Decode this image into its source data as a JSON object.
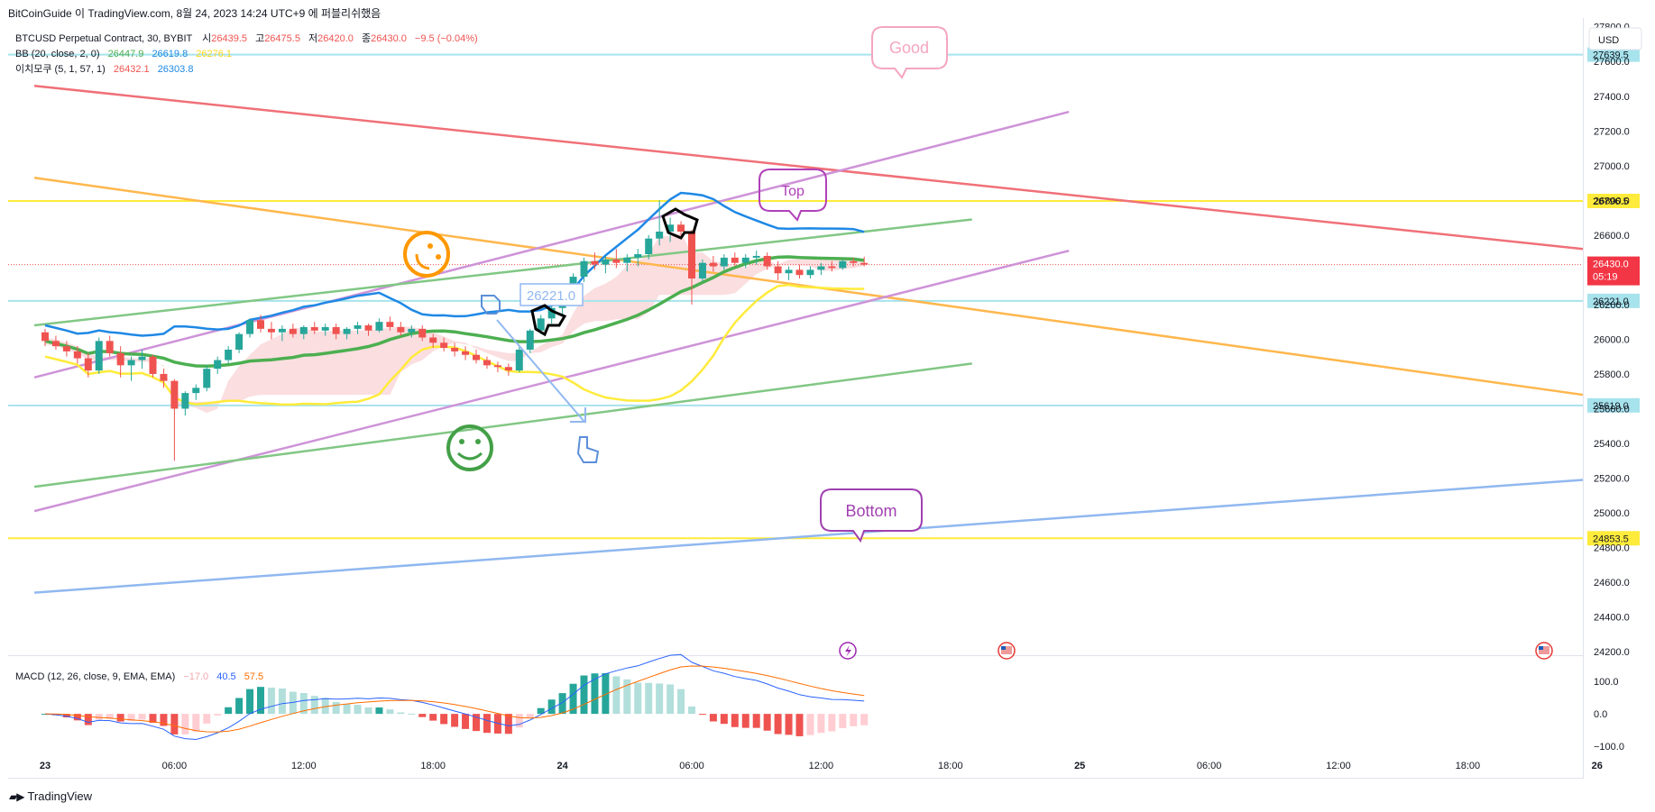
{
  "header": {
    "attribution": "BitCoinGuide 이 TradingView.com, 8월 24, 2023 14:24 UTC+9 에 퍼블리쉬했음"
  },
  "currency": "USD",
  "legend": {
    "symbol": "BTCUSD Perpetual Contract, 30, BYBIT",
    "ohlc": [
      {
        "key": "시",
        "value": "26439.5"
      },
      {
        "key": "고",
        "value": "26475.5"
      },
      {
        "key": "저",
        "value": "26420.0"
      },
      {
        "key": "종",
        "value": "26430.0"
      }
    ],
    "change": "−9.5 (−0.04%)",
    "bb": {
      "label": "BB (20, close, 2, 0)",
      "v1": "26447.9",
      "v2": "26619.8",
      "v3": "26276.1"
    },
    "ichimoku": {
      "label": "이치모쿠 (5, 1, 57, 1)",
      "v1": "26432.1",
      "v2": "26303.8"
    },
    "macd": {
      "label": "MACD (12, 26, close, 9, EMA, EMA)",
      "v1": "−17.0",
      "v2": "40.5",
      "v3": "57.5"
    }
  },
  "colors": {
    "up": "#26a69a",
    "down": "#ef5350",
    "bb_basis": "#4caf50",
    "bb_upper": "#1e88e5",
    "bb_lower": "#ffeb3b",
    "cloud": "#f8c8cc",
    "yellow_level": "#ffeb3b",
    "cyan_level": "#a7e3ec",
    "red_trend": "#f07078",
    "orange_trend": "#ffb74d",
    "purple_trend": "#ce93d8",
    "green_trend": "#81c784",
    "blue_trend": "#90b8f0",
    "macd_line": "#2962ff",
    "signal_line": "#ff6d00"
  },
  "annotations": {
    "good": "Good",
    "top": "Top",
    "bottom": "Bottom",
    "price_box": "26221.0"
  },
  "price_badge": {
    "price": "26430.0",
    "countdown": "05:19"
  },
  "footer": {
    "brand": "TradingView"
  },
  "chart_data": {
    "type": "candlestick",
    "symbol": "BTCUSD Perpetual Contract",
    "timeframe": "30",
    "y_axis": {
      "ticks": [
        "27800.0",
        "27600.0",
        "27400.0",
        "27200.0",
        "27000.0",
        "26800.0",
        "26600.0",
        "26400.0",
        "26200.0",
        "26000.0",
        "25800.0",
        "25600.0",
        "25400.0",
        "25200.0",
        "25000.0",
        "24800.0",
        "24600.0",
        "24400.0",
        "24200.0"
      ],
      "range": [
        24180,
        27840
      ]
    },
    "x_axis": {
      "ticks": [
        {
          "label": "23",
          "idx": 0
        },
        {
          "label": "06:00",
          "idx": 12
        },
        {
          "label": "12:00",
          "idx": 24
        },
        {
          "label": "18:00",
          "idx": 36
        },
        {
          "label": "24",
          "idx": 48
        },
        {
          "label": "06:00",
          "idx": 60
        },
        {
          "label": "12:00",
          "idx": 72
        },
        {
          "label": "18:00",
          "idx": 84
        },
        {
          "label": "25",
          "idx": 96
        },
        {
          "label": "06:00",
          "idx": 108
        },
        {
          "label": "12:00",
          "idx": 120
        },
        {
          "label": "18:00",
          "idx": 132
        },
        {
          "label": "26",
          "idx": 144
        }
      ],
      "bars_per_tick": 12
    },
    "price_levels": [
      {
        "label": "27639.5",
        "value": 27639.5,
        "kind": "cyan"
      },
      {
        "label": "26796.5",
        "value": 26796.5,
        "kind": "yellow"
      },
      {
        "label": "26221.0",
        "value": 26221.0,
        "kind": "cyan"
      },
      {
        "label": "25619.0",
        "value": 25619.0,
        "kind": "cyan"
      },
      {
        "label": "24853.5",
        "value": 24853.5,
        "kind": "yellow"
      }
    ],
    "trend_lines": [
      {
        "kind": "red",
        "p1": [
          -1,
          27460
        ],
        "p2": [
          148,
          26520
        ]
      },
      {
        "kind": "orange",
        "p1": [
          -1,
          26930
        ],
        "p2": [
          148,
          25680
        ]
      },
      {
        "kind": "purple",
        "p1": [
          -1,
          25780
        ],
        "p2": [
          95,
          27310
        ]
      },
      {
        "kind": "purple",
        "p1": [
          -1,
          25010
        ],
        "p2": [
          95,
          26510
        ]
      },
      {
        "kind": "green",
        "p1": [
          -1,
          26080
        ],
        "p2": [
          86,
          26690
        ]
      },
      {
        "kind": "green",
        "p1": [
          -1,
          25150
        ],
        "p2": [
          86,
          25860
        ]
      },
      {
        "kind": "blue",
        "p1": [
          -1,
          24540
        ],
        "p2": [
          148,
          25190
        ]
      }
    ],
    "candles": [
      [
        26040,
        26060,
        25960,
        25990
      ],
      [
        25990,
        26020,
        25940,
        25960
      ],
      [
        25960,
        25990,
        25900,
        25930
      ],
      [
        25930,
        25960,
        25860,
        25890
      ],
      [
        25890,
        25920,
        25780,
        25820
      ],
      [
        25820,
        26010,
        25800,
        25990
      ],
      [
        25990,
        26020,
        25900,
        25920
      ],
      [
        25920,
        25960,
        25780,
        25850
      ],
      [
        25850,
        25900,
        25760,
        25880
      ],
      [
        25880,
        25940,
        25830,
        25900
      ],
      [
        25900,
        25910,
        25780,
        25800
      ],
      [
        25800,
        25830,
        25720,
        25760
      ],
      [
        25760,
        25770,
        25300,
        25600
      ],
      [
        25600,
        25700,
        25560,
        25690
      ],
      [
        25690,
        25740,
        25650,
        25720
      ],
      [
        25720,
        25850,
        25700,
        25830
      ],
      [
        25830,
        25900,
        25800,
        25880
      ],
      [
        25880,
        25960,
        25860,
        25940
      ],
      [
        25940,
        26040,
        25920,
        26030
      ],
      [
        26030,
        26120,
        26010,
        26110
      ],
      [
        26110,
        26140,
        26040,
        26060
      ],
      [
        26060,
        26100,
        26000,
        26040
      ],
      [
        26040,
        26080,
        25990,
        26060
      ],
      [
        26060,
        26090,
        26010,
        26030
      ],
      [
        26030,
        26080,
        26000,
        26070
      ],
      [
        26070,
        26100,
        26030,
        26050
      ],
      [
        26050,
        26090,
        26020,
        26070
      ],
      [
        26070,
        26090,
        26000,
        26030
      ],
      [
        26030,
        26070,
        26000,
        26060
      ],
      [
        26060,
        26100,
        26030,
        26080
      ],
      [
        26080,
        26090,
        26020,
        26050
      ],
      [
        26050,
        26120,
        26040,
        26100
      ],
      [
        26100,
        26130,
        26050,
        26070
      ],
      [
        26070,
        26100,
        26020,
        26040
      ],
      [
        26040,
        26080,
        26010,
        26060
      ],
      [
        26060,
        26080,
        25990,
        26010
      ],
      [
        26010,
        26030,
        25950,
        25980
      ],
      [
        25980,
        26010,
        25930,
        25950
      ],
      [
        25950,
        25980,
        25900,
        25930
      ],
      [
        25930,
        25960,
        25880,
        25910
      ],
      [
        25910,
        25940,
        25860,
        25880
      ],
      [
        25880,
        25900,
        25830,
        25850
      ],
      [
        25850,
        25870,
        25810,
        25840
      ],
      [
        25840,
        25860,
        25790,
        25820
      ],
      [
        25820,
        25960,
        25810,
        25940
      ],
      [
        25940,
        26060,
        25920,
        26050
      ],
      [
        26050,
        26140,
        26030,
        26120
      ],
      [
        26120,
        26200,
        26090,
        26180
      ],
      [
        26180,
        26240,
        26140,
        26220
      ],
      [
        26220,
        26380,
        26200,
        26360
      ],
      [
        26360,
        26470,
        26330,
        26450
      ],
      [
        26450,
        26500,
        26400,
        26430
      ],
      [
        26430,
        26480,
        26380,
        26460
      ],
      [
        26460,
        26520,
        26410,
        26440
      ],
      [
        26440,
        26490,
        26390,
        26470
      ],
      [
        26470,
        26520,
        26420,
        26490
      ],
      [
        26490,
        26600,
        26460,
        26580
      ],
      [
        26580,
        26800,
        26540,
        26620
      ],
      [
        26620,
        26700,
        26560,
        26660
      ],
      [
        26660,
        26680,
        26600,
        26620
      ],
      [
        26620,
        26630,
        26200,
        26350
      ],
      [
        26350,
        26460,
        26330,
        26440
      ],
      [
        26440,
        26480,
        26390,
        26420
      ],
      [
        26420,
        26490,
        26400,
        26470
      ],
      [
        26470,
        26500,
        26420,
        26440
      ],
      [
        26440,
        26490,
        26410,
        26470
      ],
      [
        26470,
        26510,
        26430,
        26480
      ],
      [
        26480,
        26500,
        26400,
        26420
      ],
      [
        26420,
        26450,
        26340,
        26380
      ],
      [
        26380,
        26420,
        26340,
        26400
      ],
      [
        26400,
        26430,
        26350,
        26370
      ],
      [
        26370,
        26420,
        26350,
        26400
      ],
      [
        26400,
        26440,
        26370,
        26420
      ],
      [
        26420,
        26450,
        26390,
        26410
      ],
      [
        26410,
        26460,
        26400,
        26450
      ],
      [
        26450,
        26470,
        26420,
        26439.5
      ],
      [
        26439.5,
        26475.5,
        26420,
        26430
      ]
    ],
    "macd_pane": {
      "ticks": [
        "100.0",
        "0.0",
        "−100.0"
      ],
      "range": [
        -105,
        175
      ]
    }
  }
}
